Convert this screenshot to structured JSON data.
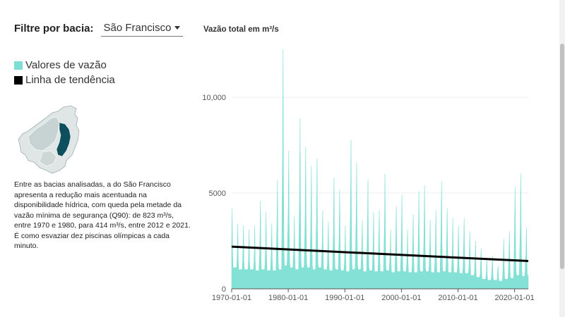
{
  "filter": {
    "label": "Filtre por bacia:",
    "selected": "São Francisco"
  },
  "legend": [
    {
      "label": "Valores de vazão",
      "color": "#7ddfd3"
    },
    {
      "label": "Linha de tendência",
      "color": "#000000"
    }
  ],
  "description": "Entre as bacias analisadas, a do São Francisco apresenta a redução mais acentuada na disponibilidade hídrica, com queda pela metade da vazão mínima de segurança (Q90): de 823 m³/s, entre 1970 e 1980, para 414 m³/s, entre 2012 e 2021. É como esvaziar dez piscinas olímpicas a cada minuto.",
  "chart_data": {
    "type": "area",
    "title": "Vazão total em m³/s",
    "xlabel": "",
    "ylabel": "",
    "ylim": [
      0,
      12500
    ],
    "xlim": [
      "1970-01-01",
      "2022-06-01"
    ],
    "yticks": [
      0,
      5000,
      10000
    ],
    "ytick_labels": [
      "0",
      "5000",
      "10,000"
    ],
    "xticks": [
      "1970-01-01",
      "1980-01-01",
      "1990-01-01",
      "2000-01-01",
      "2010-01-01",
      "2020-01-01"
    ],
    "grid": true,
    "series": [
      {
        "name": "Valores de vazão",
        "color": "#7ddfd3",
        "annual_peaks": [
          {
            "year": 1970,
            "peak": 4200,
            "low": 1100
          },
          {
            "year": 1971,
            "peak": 3400,
            "low": 1000
          },
          {
            "year": 1972,
            "peak": 3300,
            "low": 1000
          },
          {
            "year": 1973,
            "peak": 3100,
            "low": 1000
          },
          {
            "year": 1974,
            "peak": 3300,
            "low": 950
          },
          {
            "year": 1975,
            "peak": 4600,
            "low": 1000
          },
          {
            "year": 1976,
            "peak": 4000,
            "low": 950
          },
          {
            "year": 1977,
            "peak": 3400,
            "low": 950
          },
          {
            "year": 1978,
            "peak": 5700,
            "low": 1000
          },
          {
            "year": 1979,
            "peak": 12500,
            "low": 1200
          },
          {
            "year": 1980,
            "peak": 7200,
            "low": 1100
          },
          {
            "year": 1981,
            "peak": 3800,
            "low": 1000
          },
          {
            "year": 1982,
            "peak": 8900,
            "low": 1100
          },
          {
            "year": 1983,
            "peak": 7400,
            "low": 1100
          },
          {
            "year": 1984,
            "peak": 6400,
            "low": 1000
          },
          {
            "year": 1985,
            "peak": 6800,
            "low": 1100
          },
          {
            "year": 1986,
            "peak": 4100,
            "low": 1000
          },
          {
            "year": 1987,
            "peak": 3500,
            "low": 950
          },
          {
            "year": 1988,
            "peak": 5800,
            "low": 1000
          },
          {
            "year": 1989,
            "peak": 5200,
            "low": 950
          },
          {
            "year": 1990,
            "peak": 3300,
            "low": 900
          },
          {
            "year": 1991,
            "peak": 7800,
            "low": 1000
          },
          {
            "year": 1992,
            "peak": 6600,
            "low": 1000
          },
          {
            "year": 1993,
            "peak": 3600,
            "low": 900
          },
          {
            "year": 1994,
            "peak": 5700,
            "low": 950
          },
          {
            "year": 1995,
            "peak": 4000,
            "low": 900
          },
          {
            "year": 1996,
            "peak": 4100,
            "low": 900
          },
          {
            "year": 1997,
            "peak": 6000,
            "low": 950
          },
          {
            "year": 1998,
            "peak": 3100,
            "low": 850
          },
          {
            "year": 1999,
            "peak": 4300,
            "low": 900
          },
          {
            "year": 2000,
            "peak": 4900,
            "low": 900
          },
          {
            "year": 2001,
            "peak": 3100,
            "low": 850
          },
          {
            "year": 2002,
            "peak": 3900,
            "low": 850
          },
          {
            "year": 2003,
            "peak": 5100,
            "low": 900
          },
          {
            "year": 2004,
            "peak": 5400,
            "low": 900
          },
          {
            "year": 2005,
            "peak": 3600,
            "low": 850
          },
          {
            "year": 2006,
            "peak": 4100,
            "low": 850
          },
          {
            "year": 2007,
            "peak": 5600,
            "low": 900
          },
          {
            "year": 2008,
            "peak": 4200,
            "low": 850
          },
          {
            "year": 2009,
            "peak": 3700,
            "low": 850
          },
          {
            "year": 2010,
            "peak": 3300,
            "low": 800
          },
          {
            "year": 2011,
            "peak": 3700,
            "low": 800
          },
          {
            "year": 2012,
            "peak": 3000,
            "low": 700
          },
          {
            "year": 2013,
            "peak": 2500,
            "low": 600
          },
          {
            "year": 2014,
            "peak": 2100,
            "low": 500
          },
          {
            "year": 2015,
            "peak": 1600,
            "low": 450
          },
          {
            "year": 2016,
            "peak": 1700,
            "low": 450
          },
          {
            "year": 2017,
            "peak": 1200,
            "low": 400
          },
          {
            "year": 2018,
            "peak": 2600,
            "low": 500
          },
          {
            "year": 2019,
            "peak": 3000,
            "low": 550
          },
          {
            "year": 2020,
            "peak": 5300,
            "low": 700
          },
          {
            "year": 2021,
            "peak": 6000,
            "low": 650
          },
          {
            "year": 2022,
            "peak": 3200,
            "low": 700
          }
        ]
      },
      {
        "name": "Linha de tendência",
        "color": "#000000",
        "points": [
          {
            "x": "1970-01-01",
            "y": 2200
          },
          {
            "x": "2022-06-01",
            "y": 1450
          }
        ]
      }
    ]
  }
}
